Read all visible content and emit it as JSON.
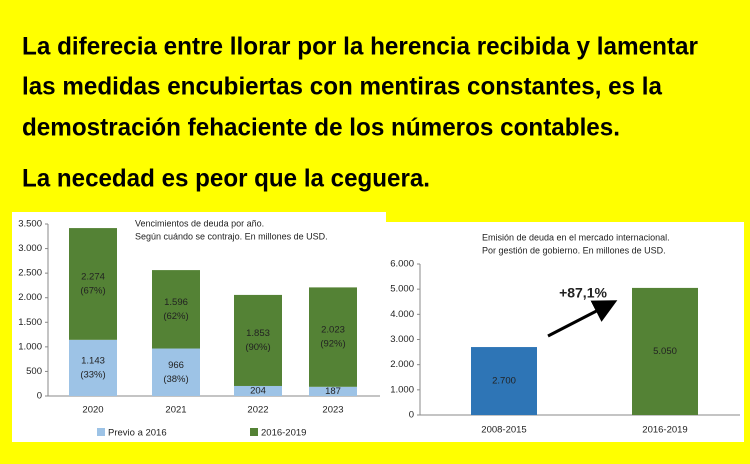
{
  "header": {
    "lines": [
      "La diferecia entre llorar por la herencia recibida y lamentar",
      "las medidas encubiertas con mentiras constantes, es la",
      "demostración fehaciente de los números contables.",
      "La necedad es peor que la ceguera."
    ]
  },
  "chart_data": [
    {
      "type": "stacked-bar",
      "title": "Vencimientos de deuda por año.",
      "subtitle": "Según cuándo se contrajo. En millones de USD.",
      "categories": [
        "2020",
        "2021",
        "2022",
        "2023"
      ],
      "series": [
        {
          "name": "Previo a 2016",
          "color": "#9dc3e6",
          "values": [
            1143,
            966,
            204,
            187
          ],
          "value_labels": [
            "1.143",
            "966",
            "204",
            "187"
          ],
          "share_labels": [
            "(33%)",
            "(38%)",
            null,
            null
          ]
        },
        {
          "name": "2016-2019",
          "color": "#548235",
          "values": [
            2274,
            1596,
            1853,
            2023
          ],
          "value_labels": [
            "2.274",
            "1.596",
            "1.853",
            "2.023"
          ],
          "share_labels": [
            "(67%)",
            "(62%)",
            "(90%)",
            "(92%)"
          ]
        }
      ],
      "ylim": [
        0,
        3500
      ],
      "yticks": [
        0,
        500,
        {
          "value": 1000,
          "label": "1.000"
        },
        {
          "value": 1500,
          "label": "1.500"
        },
        {
          "value": 2000,
          "label": "2.000"
        },
        {
          "value": 2500,
          "label": "2.500"
        },
        {
          "value": 3000,
          "label": "3.000"
        },
        {
          "value": 3500,
          "label": "3.500"
        }
      ],
      "legend": "bottom"
    },
    {
      "type": "bar",
      "title": "Emisión de deuda en el mercado internacional.",
      "subtitle": "Por gestión de gobierno. En millones de USD.",
      "categories": [
        "2008-2015",
        "2016-2019"
      ],
      "values": [
        2700,
        5050
      ],
      "value_labels": [
        "2.700",
        "5.050"
      ],
      "colors": [
        "#2e75b6",
        "#548235"
      ],
      "ylim": [
        0,
        6000
      ],
      "yticks": [
        0,
        {
          "value": 1000,
          "label": "1.000"
        },
        {
          "value": 2000,
          "label": "2.000"
        },
        {
          "value": 3000,
          "label": "3.000"
        },
        {
          "value": 4000,
          "label": "4.000"
        },
        {
          "value": 5000,
          "label": "5.000"
        },
        {
          "value": 6000,
          "label": "6.000"
        }
      ],
      "annotation": "+87,1%"
    }
  ]
}
